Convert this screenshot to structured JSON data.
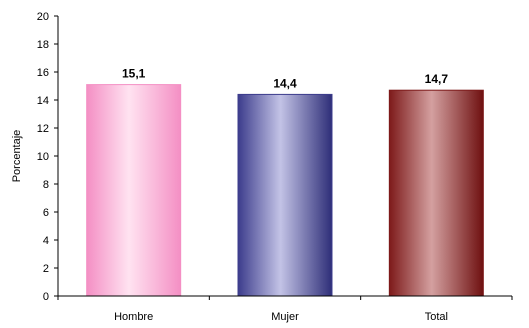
{
  "chart_data": {
    "type": "bar",
    "categories": [
      "Hombre",
      "Mujer",
      "Total"
    ],
    "values": [
      15.1,
      14.4,
      14.7
    ],
    "value_labels": [
      "15,1",
      "14,4",
      "14,7"
    ],
    "bar_colors": [
      "#f48fc4",
      "#3c3c8c",
      "#7d1a1a"
    ],
    "title": "",
    "xlabel": "",
    "ylabel": "Porcentaje",
    "ylim": [
      0,
      20
    ],
    "yticks": [
      0,
      2,
      4,
      6,
      8,
      10,
      12,
      14,
      16,
      18,
      20
    ],
    "grid": false,
    "legend": "none"
  }
}
